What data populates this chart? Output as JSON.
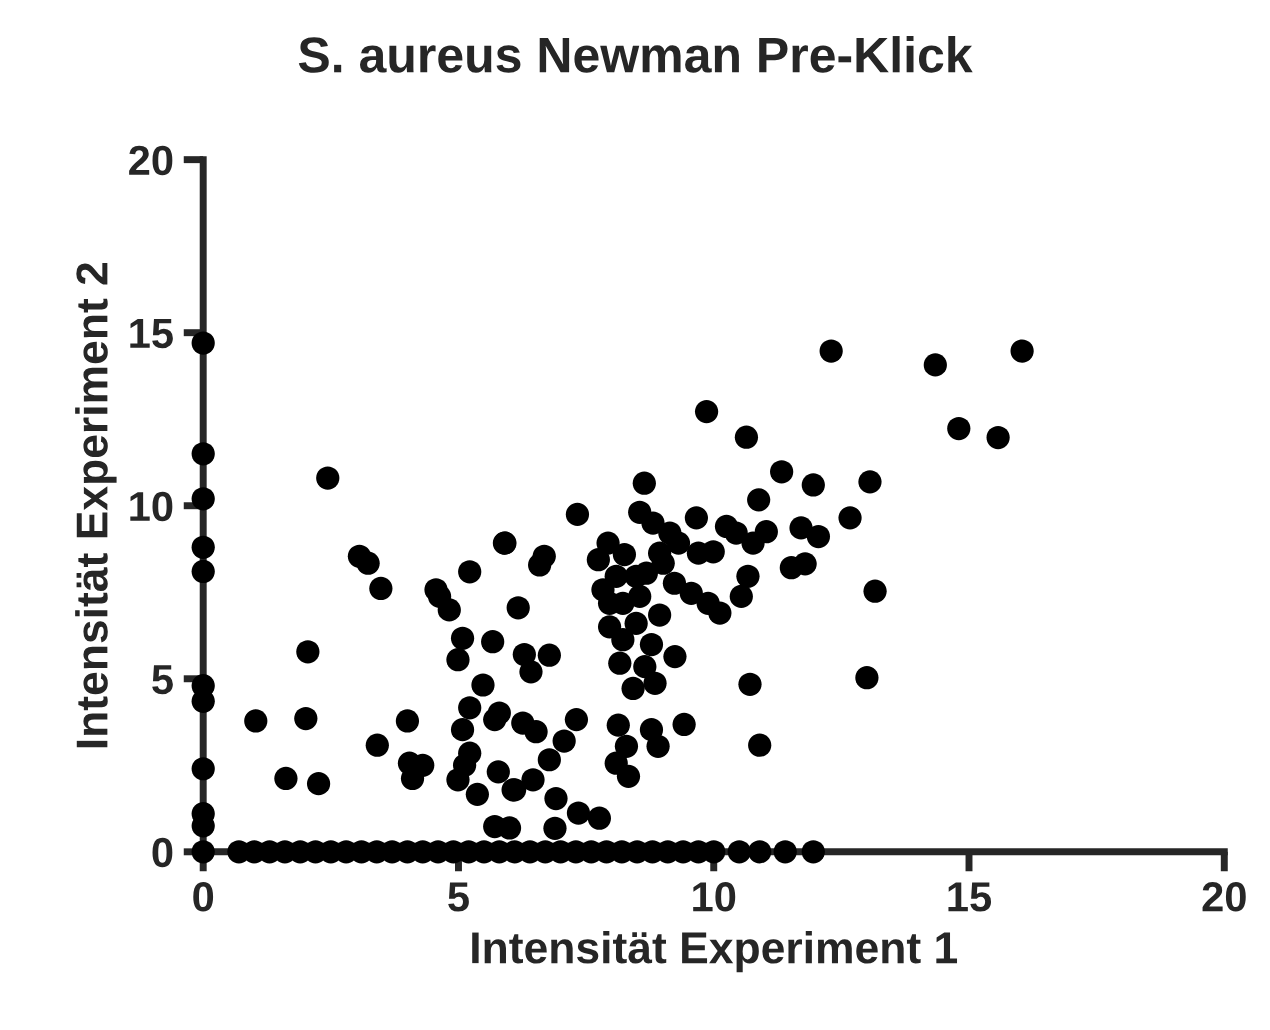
{
  "chart_data": {
    "type": "scatter",
    "title": "S. aureus Newman Pre-Klick",
    "xlabel": "Intensität Experiment 1",
    "ylabel": "Intensität Experiment 2",
    "xlim": [
      0,
      20
    ],
    "ylim": [
      0,
      20
    ],
    "xticks": [
      0,
      5,
      10,
      15,
      20
    ],
    "yticks": [
      0,
      5,
      10,
      15,
      20
    ],
    "grid": false,
    "marker": "circle",
    "series": [
      {
        "color": "#000000",
        "x": [
          0,
          0,
          0,
          0,
          0,
          0,
          0,
          0,
          0,
          0,
          0,
          2.44,
          3.06,
          3.23,
          3.48,
          2.05,
          1.03,
          2.01,
          1.62,
          2.26,
          3.41,
          4.0,
          4.04,
          4.3,
          4.1,
          4.56,
          4.63,
          4.82,
          5.22,
          5.9,
          6.17,
          5.08,
          4.99,
          5.67,
          5.48,
          6.29,
          6.42,
          5.22,
          5.08,
          5.8,
          5.71,
          6.26,
          5.22,
          5.12,
          4.99,
          5.37,
          5.78,
          6.1,
          6.46,
          5.71,
          6.0,
          12.3,
          9.86,
          10.64,
          8.64,
          11.33,
          11.95,
          10.88,
          12.67,
          7.33,
          5.91,
          6.68,
          6.59,
          8.55,
          8.81,
          9.14,
          9.31,
          9.66,
          10.25,
          10.44,
          10.77,
          11.03,
          11.71,
          12.05,
          11.52,
          11.79,
          9.7,
          9.99,
          7.93,
          7.74,
          8.25,
          8.94,
          7.83,
          8.09,
          8.48,
          8.68,
          9.01,
          9.23,
          9.56,
          9.89,
          10.12,
          10.54,
          10.67,
          7.96,
          8.22,
          8.55,
          8.94,
          7.96,
          8.48,
          8.22,
          8.78,
          8.16,
          9.24,
          8.65,
          8.85,
          8.42,
          6.78,
          10.71,
          10.9,
          7.31,
          6.52,
          7.07,
          6.78,
          8.13,
          8.78,
          8.91,
          9.42,
          8.29,
          8.09,
          8.33,
          6.07,
          6.91,
          7.35,
          7.76,
          6.89,
          14.34,
          16.04,
          14.8,
          15.57,
          13.06,
          13.16,
          13.0,
          0.7,
          1.0,
          1.3,
          1.6,
          1.9,
          2.2,
          2.5,
          2.8,
          3.1,
          3.4,
          3.7,
          4.0,
          4.3,
          4.6,
          4.9,
          5.2,
          5.5,
          5.8,
          6.1,
          6.4,
          6.7,
          7.0,
          7.3,
          7.6,
          7.9,
          8.2,
          8.5,
          8.8,
          9.1,
          9.4,
          9.7,
          10.0,
          10.5,
          10.9,
          11.4,
          11.95
        ],
        "values": [
          14.7,
          11.5,
          10.2,
          8.8,
          8.1,
          4.8,
          4.35,
          2.4,
          1.1,
          0.75,
          0,
          10.8,
          8.54,
          8.34,
          7.61,
          5.78,
          3.78,
          3.85,
          2.12,
          1.97,
          3.08,
          3.78,
          2.56,
          2.5,
          2.12,
          7.57,
          7.38,
          6.99,
          8.09,
          8.92,
          7.05,
          6.17,
          5.55,
          6.07,
          4.82,
          5.7,
          5.2,
          4.16,
          3.53,
          4.01,
          3.82,
          3.72,
          2.85,
          2.5,
          2.08,
          1.66,
          2.31,
          1.79,
          2.08,
          0.73,
          0.69,
          14.47,
          12.72,
          11.98,
          10.65,
          10.98,
          10.6,
          10.17,
          9.65,
          9.75,
          8.92,
          8.54,
          8.29,
          9.81,
          9.5,
          9.21,
          8.92,
          9.65,
          9.4,
          9.21,
          8.92,
          9.25,
          9.36,
          9.11,
          8.21,
          8.32,
          8.63,
          8.67,
          8.92,
          8.44,
          8.59,
          8.63,
          7.57,
          7.96,
          7.96,
          8.05,
          8.34,
          7.76,
          7.47,
          7.18,
          6.9,
          7.38,
          7.96,
          7.18,
          7.18,
          7.38,
          6.84,
          6.5,
          6.6,
          6.13,
          5.99,
          5.45,
          5.64,
          5.35,
          4.87,
          4.72,
          5.68,
          4.84,
          3.08,
          3.82,
          3.47,
          3.2,
          2.66,
          3.66,
          3.53,
          3.05,
          3.68,
          3.05,
          2.56,
          2.18,
          1.79,
          1.54,
          1.12,
          0.97,
          0.68,
          14.07,
          14.47,
          12.23,
          11.97,
          10.69,
          7.53,
          5.03,
          0,
          0,
          0,
          0,
          0,
          0,
          0,
          0,
          0,
          0,
          0,
          0,
          0,
          0,
          0,
          0,
          0,
          0,
          0,
          0,
          0,
          0,
          0,
          0,
          0,
          0,
          0,
          0,
          0,
          0,
          0,
          0,
          0,
          0,
          0,
          0
        ]
      }
    ]
  }
}
